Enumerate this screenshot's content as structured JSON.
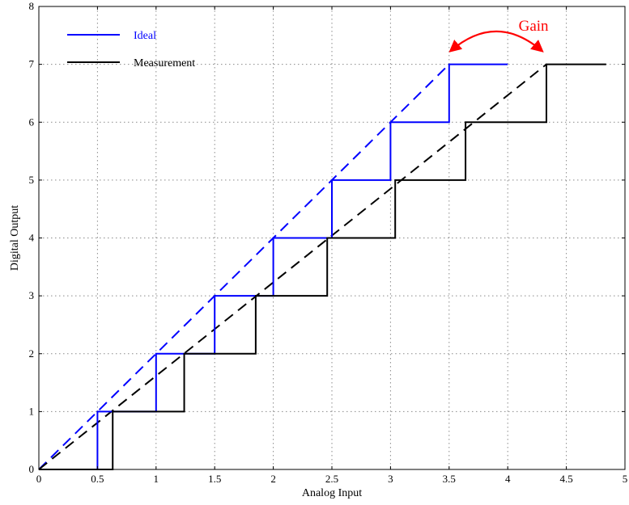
{
  "chart_data": {
    "type": "line",
    "xlabel": "Analog Input",
    "ylabel": "Digital Output",
    "xlim": [
      0,
      5
    ],
    "ylim": [
      0,
      8
    ],
    "x_ticks": [
      "0",
      "0.5",
      "1",
      "1.5",
      "2",
      "2.5",
      "3",
      "3.5",
      "4",
      "4.5",
      "5"
    ],
    "y_ticks": [
      "0",
      "1",
      "2",
      "3",
      "4",
      "5",
      "6",
      "7",
      "8"
    ],
    "grid": true,
    "legend_position": "top-left",
    "series": [
      {
        "name": "Ideal",
        "color": "#0000ff",
        "style": "step",
        "x": [
          0,
          0.5,
          0.5,
          1.0,
          1.0,
          1.5,
          1.5,
          2.0,
          2.0,
          2.5,
          2.5,
          3.0,
          3.0,
          3.5,
          3.5,
          4.0
        ],
        "y": [
          0,
          0,
          1,
          1,
          2,
          2,
          3,
          3,
          4,
          4,
          5,
          5,
          6,
          6,
          7,
          7
        ]
      },
      {
        "name": "Measurement",
        "color": "#000000",
        "style": "step",
        "x": [
          0,
          0.63,
          0.63,
          1.24,
          1.24,
          1.85,
          1.85,
          2.46,
          2.46,
          3.04,
          3.04,
          3.64,
          3.64,
          4.33,
          4.33,
          4.84
        ],
        "y": [
          0,
          0,
          1,
          1,
          2,
          2,
          3,
          3,
          4,
          4,
          5,
          5,
          6,
          6,
          7,
          7
        ]
      }
    ],
    "reference_lines": [
      {
        "color": "#0000ff",
        "x": [
          0,
          3.5
        ],
        "y": [
          0,
          7
        ]
      },
      {
        "color": "#000000",
        "x": [
          0,
          4.33
        ],
        "y": [
          0,
          7
        ]
      }
    ],
    "annotation": {
      "text": "Gain",
      "color": "#ff0000",
      "from": [
        3.5,
        7.15
      ],
      "to": [
        4.25,
        7.15
      ]
    }
  }
}
